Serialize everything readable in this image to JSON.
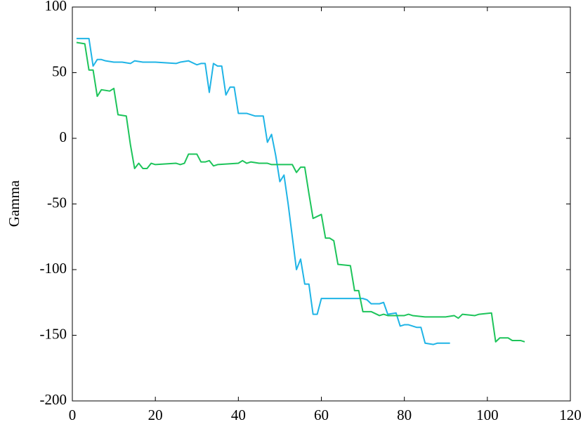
{
  "chart_data": {
    "type": "line",
    "y_label": "Gamma",
    "xlim": [
      0,
      120
    ],
    "xticks": [
      0,
      20,
      40,
      60,
      80,
      100,
      120
    ],
    "ylim": [
      -200,
      100
    ],
    "yticks": [
      -200,
      -150,
      -100,
      -50,
      0,
      50,
      100
    ],
    "grid": false,
    "series": [
      {
        "color": "#1fb4e6",
        "x": [
          1,
          4,
          5,
          6,
          7,
          8,
          10,
          12,
          14,
          15,
          17,
          20,
          25,
          26,
          28,
          30,
          31,
          32,
          33,
          34,
          35,
          36,
          37,
          38,
          39,
          40,
          42,
          43,
          44,
          46,
          47,
          48,
          49,
          50,
          51,
          52,
          53,
          54,
          55,
          56,
          57,
          58,
          59,
          60,
          65,
          70,
          71,
          72,
          74,
          75,
          76,
          78,
          79,
          80,
          81,
          83,
          84,
          85,
          87,
          88,
          91
        ],
        "values": [
          76,
          76,
          55,
          60,
          60,
          59,
          58,
          58,
          57,
          59,
          58,
          58,
          57,
          58,
          59,
          56,
          57,
          57,
          35,
          57,
          55,
          55,
          33,
          39,
          39,
          19,
          19,
          18,
          17,
          17,
          -3,
          3,
          -13,
          -33,
          -28,
          -50,
          -75,
          -100,
          -92,
          -111,
          -111,
          -134,
          -134,
          -122,
          -122,
          -122,
          -123,
          -126,
          -126,
          -125,
          -134,
          -133,
          -143,
          -142,
          -142,
          -144,
          -144,
          -156,
          -157,
          -156,
          -156
        ]
      },
      {
        "color": "#1dc45a",
        "x": [
          1,
          3,
          4,
          5,
          6,
          7,
          9,
          10,
          11,
          13,
          14,
          15,
          16,
          17,
          18,
          19,
          20,
          25,
          26,
          27,
          28,
          30,
          31,
          32,
          33,
          34,
          35,
          40,
          41,
          42,
          43,
          45,
          47,
          48,
          53,
          54,
          55,
          56,
          57,
          58,
          60,
          61,
          62,
          63,
          64,
          67,
          68,
          69,
          70,
          72,
          74,
          75,
          76,
          80,
          81,
          82,
          85,
          90,
          92,
          93,
          94,
          97,
          98,
          101,
          102,
          103,
          105,
          106,
          108,
          109
        ],
        "values": [
          73,
          72,
          52,
          52,
          32,
          37,
          36,
          38,
          18,
          17,
          -5,
          -23,
          -19,
          -23,
          -23,
          -19,
          -20,
          -19,
          -20,
          -19,
          -12,
          -12,
          -18,
          -18,
          -17,
          -21,
          -20,
          -19,
          -17,
          -19,
          -18,
          -19,
          -19,
          -20,
          -20,
          -26,
          -22,
          -22,
          -42,
          -61,
          -58,
          -76,
          -76,
          -78,
          -96,
          -97,
          -116,
          -116,
          -132,
          -132,
          -135,
          -134,
          -135,
          -135,
          -134,
          -135,
          -136,
          -136,
          -135,
          -137,
          -134,
          -135,
          -134,
          -133,
          -155,
          -152,
          -152,
          -154,
          -154,
          -155
        ]
      }
    ]
  }
}
